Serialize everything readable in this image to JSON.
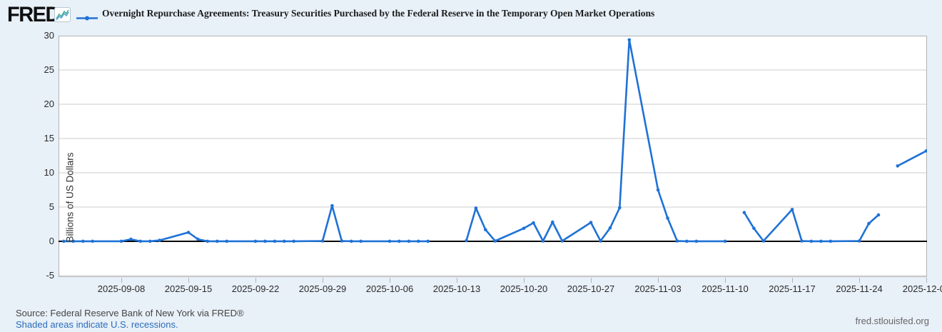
{
  "header": {
    "logo": "FRED",
    "registered": "®",
    "title": "Overnight Repurchase Agreements: Treasury Securities Purchased by the Federal Reserve in the Temporary Open Market Operations"
  },
  "footer": {
    "source": "Source: Federal Reserve Bank of New York via FRED®",
    "recessions_link": "Shaded areas indicate U.S. recessions.",
    "site_link": "fred.stlouisfed.org"
  },
  "colors": {
    "background": "#e8f0f8",
    "plot_background": "#ffffff",
    "line": "#1f72d6",
    "zero_line": "#000000",
    "gridline": "#cccccc",
    "plot_border": "#b3b3b3",
    "link_blue": "#2a6dbb",
    "badge_teal": "#4bb092",
    "badge_blue": "#5aa8d8"
  },
  "chart_data": {
    "type": "line",
    "title": "Overnight Repurchase Agreements: Treasury Securities Purchased by the Federal Reserve in the Temporary Open Market Operations",
    "ylabel": "Billions of US Dollars",
    "xlabel": "",
    "ylim": [
      -5.2,
      30
    ],
    "grid": "horizontal-only",
    "zero_line": true,
    "markers": true,
    "legend_position": "top-header-inline",
    "y_ticks": [
      30,
      25,
      20,
      15,
      10,
      5,
      0,
      -5
    ],
    "x_tick_labels": [
      "2025-09-08",
      "2025-09-15",
      "2025-09-22",
      "2025-09-29",
      "2025-10-06",
      "2025-10-13",
      "2025-10-20",
      "2025-10-27",
      "2025-11-03",
      "2025-11-10",
      "2025-11-17",
      "2025-11-24",
      "2025-12-01"
    ],
    "x": [
      "2025-09-02",
      "2025-09-03",
      "2025-09-04",
      "2025-09-05",
      "2025-09-08",
      "2025-09-09",
      "2025-09-10",
      "2025-09-11",
      "2025-09-12",
      "2025-09-15",
      "2025-09-16",
      "2025-09-17",
      "2025-09-18",
      "2025-09-19",
      "2025-09-22",
      "2025-09-23",
      "2025-09-24",
      "2025-09-25",
      "2025-09-26",
      "2025-09-29",
      "2025-09-30",
      "2025-10-01",
      "2025-10-02",
      "2025-10-03",
      "2025-10-06",
      "2025-10-07",
      "2025-10-08",
      "2025-10-09",
      "2025-10-10",
      "2025-10-13",
      "2025-10-14",
      "2025-10-15",
      "2025-10-16",
      "2025-10-17",
      "2025-10-20",
      "2025-10-21",
      "2025-10-22",
      "2025-10-23",
      "2025-10-24",
      "2025-10-27",
      "2025-10-28",
      "2025-10-29",
      "2025-10-30",
      "2025-10-31",
      "2025-11-03",
      "2025-11-04",
      "2025-11-05",
      "2025-11-06",
      "2025-11-07",
      "2025-11-10",
      "2025-11-11",
      "2025-11-12",
      "2025-11-13",
      "2025-11-14",
      "2025-11-17",
      "2025-11-18",
      "2025-11-19",
      "2025-11-20",
      "2025-11-21",
      "2025-11-24",
      "2025-11-25",
      "2025-11-26",
      "2025-11-27",
      "2025-11-28",
      "2025-12-01"
    ],
    "values": [
      0.01,
      0.01,
      0.01,
      0.01,
      0.01,
      0.3,
      0.01,
      0.01,
      0.15,
      1.3,
      0.3,
      0.01,
      0.01,
      0.01,
      0.01,
      0.01,
      0.01,
      0.01,
      0.01,
      0.05,
      5.2,
      0.05,
      0.01,
      0.01,
      0.01,
      0.01,
      0.01,
      0.01,
      0.01,
      null,
      0.1,
      4.85,
      1.7,
      0.05,
      1.9,
      2.7,
      0.05,
      2.8,
      0.05,
      2.75,
      0.05,
      1.95,
      4.9,
      29.4,
      7.5,
      3.4,
      0.05,
      0.01,
      0.01,
      0.01,
      null,
      4.2,
      1.9,
      0.05,
      4.65,
      0.05,
      0.01,
      0.01,
      0.01,
      0.05,
      2.6,
      3.85,
      null,
      11.0,
      13.2
    ]
  }
}
